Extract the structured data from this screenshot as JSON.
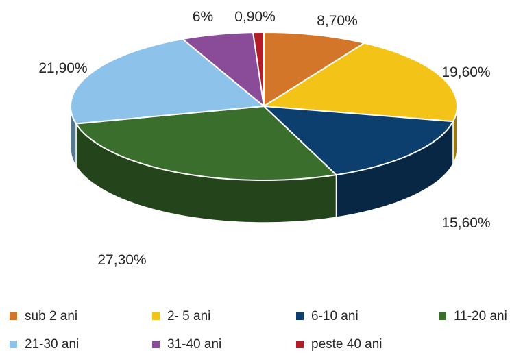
{
  "chart_data": {
    "type": "pie",
    "style": "3d",
    "title": "",
    "slices": [
      {
        "label": "sub 2 ani",
        "value": 8.7,
        "display": "8,70%",
        "color": "#D4762A"
      },
      {
        "label": "2- 5 ani",
        "value": 19.6,
        "display": "19,60%",
        "color": "#F4C318"
      },
      {
        "label": "6-10 ani",
        "value": 15.6,
        "display": "15,60%",
        "color": "#0D3F6E"
      },
      {
        "label": "11-20 ani",
        "value": 27.3,
        "display": "27,30%",
        "color": "#3A6E2C"
      },
      {
        "label": "21-30 ani",
        "value": 21.9,
        "display": "21,90%",
        "color": "#8DC3EA"
      },
      {
        "label": "31-40 ani",
        "value": 6,
        "display": "6%",
        "color": "#8A4C98"
      },
      {
        "label": "peste 40 ani",
        "value": 0.9,
        "display": "0,90%",
        "color": "#B11E2A"
      }
    ],
    "legend_position": "bottom"
  }
}
